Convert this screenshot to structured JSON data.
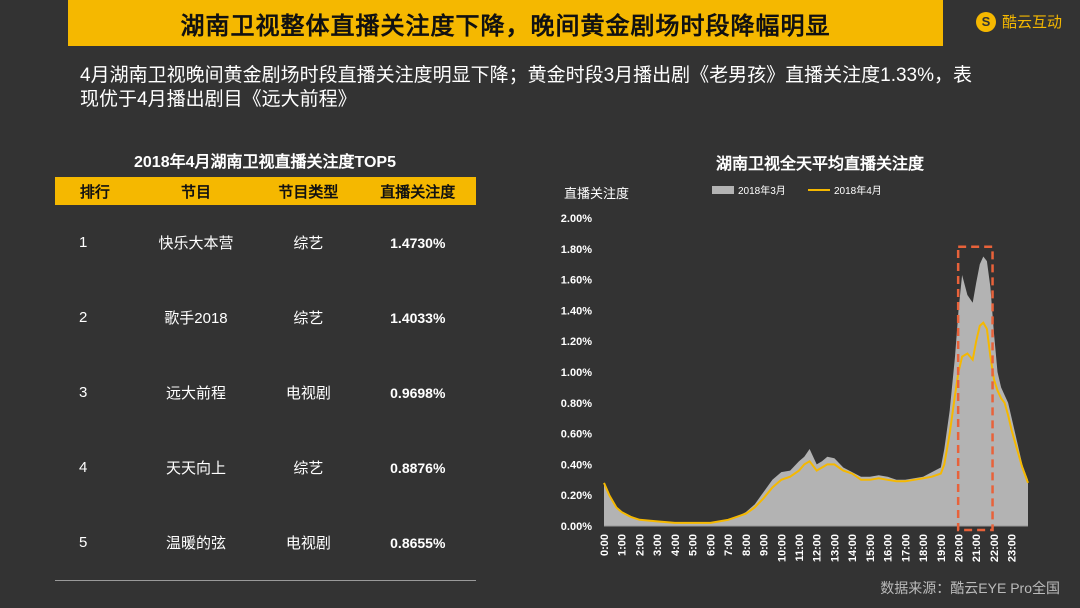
{
  "header": {
    "title": "湖南卫视整体直播关注度下降，晚间黄金剧场时段降幅明显",
    "brand": "酷云互动",
    "brand_icon": "S"
  },
  "subtitle": "4月湖南卫视晚间黄金剧场时段直播关注度明显下降；黄金时段3月播出剧《老男孩》直播关注度1.33%，表现优于4月播出剧目《远大前程》",
  "table": {
    "title": "2018年4月湖南卫视直播关注度TOP5",
    "headers": [
      "排行",
      "节目",
      "节目类型",
      "直播关注度"
    ],
    "rows": [
      {
        "rank": "1",
        "program": "快乐大本营",
        "type": "综艺",
        "value": "1.4730%"
      },
      {
        "rank": "2",
        "program": "歌手2018",
        "type": "综艺",
        "value": "1.4033%"
      },
      {
        "rank": "3",
        "program": "远大前程",
        "type": "电视剧",
        "value": "0.9698%"
      },
      {
        "rank": "4",
        "program": "天天向上",
        "type": "综艺",
        "value": "0.8876%"
      },
      {
        "rank": "5",
        "program": "温暖的弦",
        "type": "电视剧",
        "value": "0.8655%"
      }
    ]
  },
  "chart_data": {
    "type": "area",
    "title": "湖南卫视全天平均直播关注度",
    "ylabel": "直播关注度",
    "xlabel": "",
    "ylim": [
      0,
      2.0
    ],
    "xlim": [
      0,
      23.92
    ],
    "y_ticks": [
      "0.00%",
      "0.20%",
      "0.40%",
      "0.60%",
      "0.80%",
      "1.00%",
      "1.20%",
      "1.40%",
      "1.60%",
      "1.80%",
      "2.00%"
    ],
    "x_ticks": [
      "0:00",
      "1:00",
      "2:00",
      "3:00",
      "4:00",
      "5:00",
      "6:00",
      "7:00",
      "8:00",
      "9:00",
      "10:00",
      "11:00",
      "12:00",
      "13:00",
      "14:00",
      "15:00",
      "16:00",
      "17:00",
      "18:00",
      "19:00",
      "20:00",
      "21:00",
      "22:00",
      "23:00"
    ],
    "legend": "top",
    "series": [
      {
        "name": "2018年3月",
        "style": "area",
        "color": "#b3b3b3",
        "x": [
          0,
          0.3,
          0.7,
          1,
          1.5,
          2,
          3,
          4,
          5,
          6,
          6.5,
          7,
          7.5,
          8,
          8.5,
          9,
          9.5,
          10,
          10.5,
          11,
          11.3,
          11.6,
          12,
          12.3,
          12.6,
          13,
          13.5,
          14,
          14.5,
          15,
          15.5,
          16,
          16.5,
          17,
          17.5,
          18,
          18.5,
          19,
          19.2,
          19.5,
          19.8,
          20,
          20.2,
          20.5,
          20.8,
          21,
          21.2,
          21.4,
          21.6,
          21.8,
          22,
          22.2,
          22.4,
          22.6,
          22.8,
          23,
          23.3,
          23.6,
          23.92
        ],
        "values": [
          0.28,
          0.2,
          0.12,
          0.09,
          0.06,
          0.04,
          0.03,
          0.02,
          0.02,
          0.02,
          0.03,
          0.04,
          0.06,
          0.09,
          0.14,
          0.22,
          0.3,
          0.35,
          0.36,
          0.42,
          0.45,
          0.5,
          0.4,
          0.42,
          0.45,
          0.44,
          0.38,
          0.35,
          0.32,
          0.32,
          0.33,
          0.32,
          0.3,
          0.3,
          0.31,
          0.32,
          0.35,
          0.38,
          0.5,
          0.75,
          1.1,
          1.4,
          1.63,
          1.5,
          1.45,
          1.58,
          1.7,
          1.75,
          1.72,
          1.55,
          1.25,
          1.0,
          0.9,
          0.85,
          0.8,
          0.7,
          0.55,
          0.4,
          0.3
        ]
      },
      {
        "name": "2018年4月",
        "style": "line",
        "color": "#f5b800",
        "x": [
          0,
          0.3,
          0.7,
          1,
          1.5,
          2,
          3,
          4,
          5,
          6,
          6.5,
          7,
          7.5,
          8,
          8.5,
          9,
          9.5,
          10,
          10.5,
          11,
          11.3,
          11.6,
          12,
          12.3,
          12.6,
          13,
          13.5,
          14,
          14.5,
          15,
          15.5,
          16,
          16.5,
          17,
          17.5,
          18,
          18.5,
          19,
          19.2,
          19.5,
          19.8,
          20,
          20.2,
          20.5,
          20.8,
          21,
          21.2,
          21.4,
          21.6,
          21.8,
          22,
          22.2,
          22.4,
          22.6,
          22.8,
          23,
          23.3,
          23.6,
          23.92
        ],
        "values": [
          0.28,
          0.2,
          0.12,
          0.09,
          0.06,
          0.04,
          0.03,
          0.02,
          0.02,
          0.02,
          0.03,
          0.04,
          0.06,
          0.08,
          0.12,
          0.18,
          0.25,
          0.3,
          0.32,
          0.36,
          0.4,
          0.42,
          0.36,
          0.38,
          0.4,
          0.4,
          0.36,
          0.34,
          0.3,
          0.3,
          0.31,
          0.3,
          0.29,
          0.29,
          0.3,
          0.31,
          0.32,
          0.34,
          0.4,
          0.6,
          0.85,
          1.0,
          1.1,
          1.12,
          1.08,
          1.2,
          1.3,
          1.32,
          1.28,
          1.1,
          0.95,
          0.88,
          0.83,
          0.8,
          0.72,
          0.62,
          0.5,
          0.38,
          0.28
        ]
      }
    ],
    "annotation": {
      "type": "dashed-box",
      "color": "#e8623a",
      "x_range": [
        19.98,
        21.92
      ],
      "y_range": [
        0,
        1.8
      ]
    }
  },
  "source": "数据来源：酷云EYE Pro全国"
}
